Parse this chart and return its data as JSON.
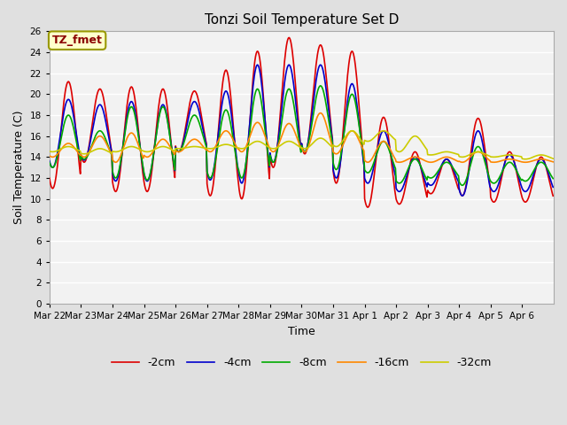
{
  "title": "Tonzi Soil Temperature Set D",
  "xlabel": "Time",
  "ylabel": "Soil Temperature (C)",
  "ylim": [
    0,
    26
  ],
  "yticks": [
    0,
    2,
    4,
    6,
    8,
    10,
    12,
    14,
    16,
    18,
    20,
    22,
    24,
    26
  ],
  "annotation_text": "TZ_fmet",
  "annotation_color": "#8B0000",
  "annotation_bg": "#FFFFCC",
  "annotation_border": "#999900",
  "series_colors": [
    "#DD0000",
    "#0000CC",
    "#00AA00",
    "#FF8800",
    "#CCCC00"
  ],
  "series_labels": [
    "-2cm",
    "-4cm",
    "-8cm",
    "-16cm",
    "-32cm"
  ],
  "bg_color": "#E0E0E0",
  "plot_bg": "#F2F2F2",
  "grid_color": "#FFFFFF",
  "line_width": 1.2,
  "x_labels": [
    "Mar 22",
    "Mar 23",
    "Mar 24",
    "Mar 25",
    "Mar 26",
    "Mar 27",
    "Mar 28",
    "Mar 29",
    "Mar 30",
    "Mar 31",
    "Apr 1",
    "Apr 2",
    "Apr 3",
    "Apr 4",
    "Apr 5",
    "Apr 6"
  ]
}
